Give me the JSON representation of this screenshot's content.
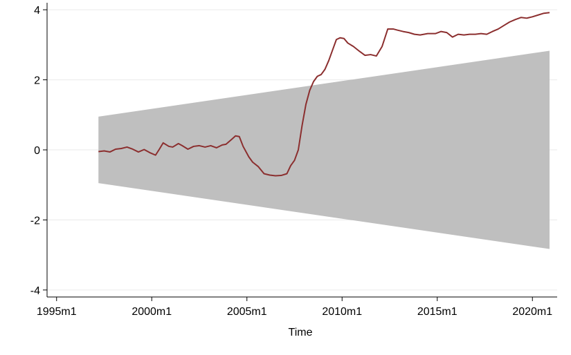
{
  "chart_data": {
    "type": "line",
    "title": "",
    "xlabel": "Time",
    "ylabel": "",
    "xlim": [
      1994.5,
      2021.3
    ],
    "ylim": [
      -4.2,
      4.2
    ],
    "x_ticks": [
      {
        "value": 1995,
        "label": "1995m1"
      },
      {
        "value": 2000,
        "label": "2000m1"
      },
      {
        "value": 2005,
        "label": "2005m1"
      },
      {
        "value": 2010,
        "label": "2010m1"
      },
      {
        "value": 2015,
        "label": "2015m1"
      },
      {
        "value": 2020,
        "label": "2020m1"
      }
    ],
    "y_ticks": [
      {
        "value": -4,
        "label": "-4"
      },
      {
        "value": -2,
        "label": "-2"
      },
      {
        "value": 0,
        "label": "0"
      },
      {
        "value": 2,
        "label": "2"
      },
      {
        "value": 4,
        "label": "4"
      }
    ],
    "grid": "horizontal",
    "band": {
      "x": [
        1997.2,
        2020.9
      ],
      "upper": [
        0.95,
        2.83
      ],
      "lower": [
        -0.95,
        -2.83
      ],
      "color": "#bfbfbf"
    },
    "series": [
      {
        "color": "#8b2e2e",
        "x": [
          1997.2,
          1997.5,
          1997.8,
          1998.1,
          1998.4,
          1998.7,
          1999.0,
          1999.3,
          1999.6,
          1999.9,
          2000.2,
          2000.4,
          2000.6,
          2000.9,
          2001.1,
          2001.4,
          2001.6,
          2001.9,
          2002.2,
          2002.5,
          2002.8,
          2003.1,
          2003.4,
          2003.7,
          2003.9,
          2004.2,
          2004.4,
          2004.6,
          2004.8,
          2005.1,
          2005.3,
          2005.6,
          2005.9,
          2006.2,
          2006.5,
          2006.8,
          2007.1,
          2007.3,
          2007.5,
          2007.7,
          2007.9,
          2008.1,
          2008.3,
          2008.5,
          2008.7,
          2008.9,
          2009.1,
          2009.3,
          2009.5,
          2009.7,
          2009.9,
          2010.1,
          2010.3,
          2010.6,
          2010.9,
          2011.2,
          2011.5,
          2011.8,
          2012.1,
          2012.4,
          2012.7,
          2012.9,
          2013.2,
          2013.5,
          2013.8,
          2014.1,
          2014.5,
          2014.9,
          2015.2,
          2015.5,
          2015.8,
          2016.1,
          2016.4,
          2016.7,
          2017.0,
          2017.3,
          2017.6,
          2017.9,
          2018.2,
          2018.5,
          2018.8,
          2019.1,
          2019.4,
          2019.7,
          2020.0,
          2020.3,
          2020.6,
          2020.9
        ],
        "values": [
          -0.05,
          -0.03,
          -0.06,
          0.02,
          0.04,
          0.08,
          0.02,
          -0.06,
          0.01,
          -0.08,
          -0.15,
          0.02,
          0.2,
          0.1,
          0.08,
          0.18,
          0.12,
          0.02,
          0.1,
          0.12,
          0.08,
          0.12,
          0.06,
          0.14,
          0.16,
          0.3,
          0.4,
          0.38,
          0.1,
          -0.2,
          -0.35,
          -0.48,
          -0.68,
          -0.72,
          -0.74,
          -0.73,
          -0.68,
          -0.45,
          -0.3,
          0.0,
          0.7,
          1.3,
          1.7,
          1.95,
          2.1,
          2.15,
          2.3,
          2.55,
          2.85,
          3.15,
          3.2,
          3.18,
          3.05,
          2.95,
          2.82,
          2.7,
          2.72,
          2.68,
          2.95,
          3.45,
          3.45,
          3.42,
          3.38,
          3.35,
          3.3,
          3.28,
          3.32,
          3.32,
          3.38,
          3.35,
          3.22,
          3.3,
          3.28,
          3.3,
          3.3,
          3.32,
          3.3,
          3.38,
          3.45,
          3.55,
          3.65,
          3.72,
          3.78,
          3.76,
          3.8,
          3.85,
          3.9,
          3.92
        ]
      }
    ]
  }
}
